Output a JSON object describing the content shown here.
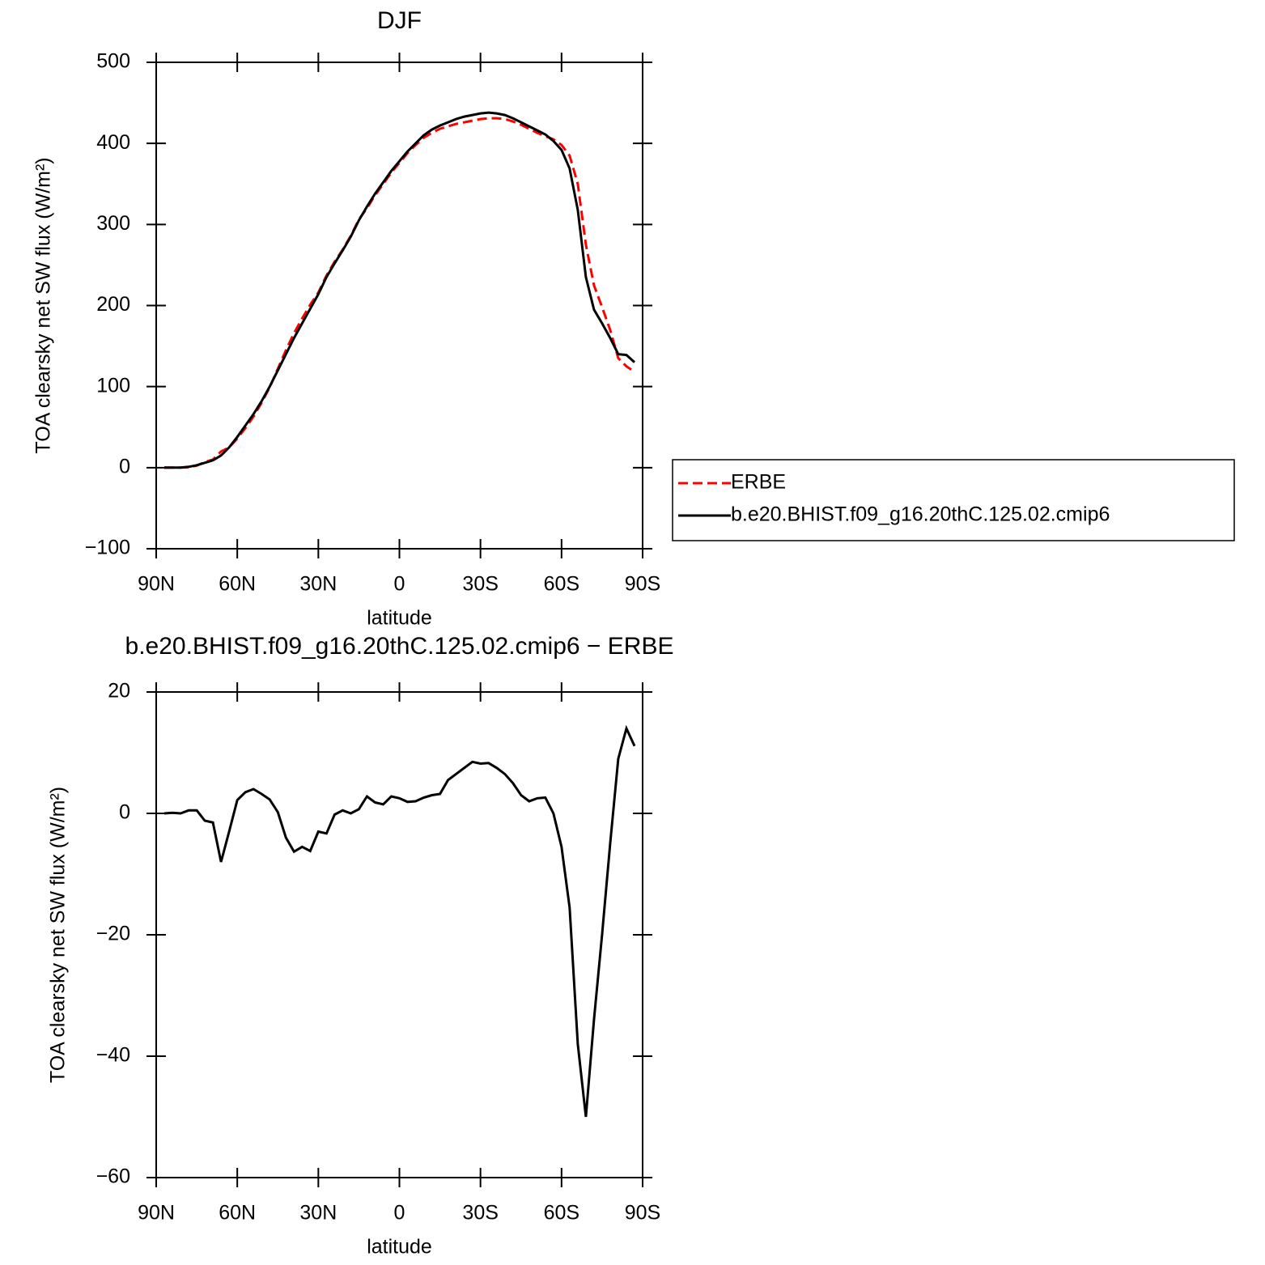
{
  "chart_data": [
    {
      "type": "line",
      "title": "DJF",
      "xlabel": "latitude",
      "ylabel": "TOA clearsky net SW flux (W/m²)",
      "x": [
        87,
        84,
        81,
        78,
        75,
        72,
        69,
        66,
        63,
        60,
        57,
        54,
        51,
        48,
        45,
        42,
        39,
        36,
        33,
        30,
        27,
        24,
        21,
        18,
        15,
        12,
        9,
        6,
        3,
        0,
        -3,
        -6,
        -9,
        -12,
        -15,
        -18,
        -21,
        -24,
        -27,
        -30,
        -33,
        -36,
        -39,
        -42,
        -45,
        -48,
        -51,
        -54,
        -57,
        -60,
        -63,
        -66,
        -69,
        -72,
        -75,
        -78,
        -81,
        -84,
        -87
      ],
      "series": [
        {
          "name": "ERBE",
          "color": "#ff0000",
          "dash": "dashed",
          "values": [
            0,
            0,
            0,
            0.5,
            2.5,
            7,
            10,
            20,
            25,
            36,
            49,
            63,
            80,
            99,
            122,
            145,
            166,
            184,
            201,
            216,
            237,
            254,
            269,
            286,
            306,
            320,
            336,
            350,
            364,
            376,
            388,
            398,
            407,
            413,
            418,
            421,
            424,
            426,
            428,
            430,
            431,
            431,
            430,
            427,
            423,
            418,
            413,
            409,
            405,
            398,
            385,
            350,
            275,
            225,
            198,
            170,
            135,
            125,
            118
          ]
        },
        {
          "name": "b.e20.BHIST.f09_g16.20thC.125.02.cmip6",
          "color": "#000000",
          "values": [
            0,
            0,
            0,
            1,
            3,
            6,
            9,
            15,
            25,
            38,
            52,
            66,
            82,
            100,
            120,
            140,
            160,
            178,
            196,
            214,
            235,
            252,
            268,
            285,
            305,
            322,
            338,
            352,
            366,
            378,
            390,
            400,
            410,
            417,
            422,
            426,
            430,
            433,
            435,
            437,
            438,
            437,
            435,
            431,
            426,
            421,
            416,
            411,
            403,
            392,
            369,
            318,
            235,
            195,
            178,
            160,
            140,
            139,
            130
          ]
        }
      ],
      "xlim": [
        90,
        -90
      ],
      "xticks": [
        {
          "value": 90,
          "label": "90N"
        },
        {
          "value": 60,
          "label": "60N"
        },
        {
          "value": 30,
          "label": "30N"
        },
        0,
        {
          "value": -30,
          "label": "30S"
        },
        {
          "value": -60,
          "label": "60S"
        },
        {
          "value": -90,
          "label": "90S"
        }
      ],
      "ylim": [
        -100,
        500
      ],
      "yticks": [
        {
          "value": -100,
          "label": "−100"
        },
        0,
        100,
        200,
        300,
        400,
        500
      ],
      "legend": "right"
    },
    {
      "type": "line",
      "title": "b.e20.BHIST.f09_g16.20thC.125.02.cmip6 − ERBE",
      "xlabel": "latitude",
      "ylabel": "TOA clearsky net SW flux (W/m²)",
      "x": [
        87,
        84,
        81,
        78,
        75,
        72,
        69,
        66,
        63,
        60,
        57,
        54,
        51,
        48,
        45,
        42,
        39,
        36,
        33,
        30,
        27,
        24,
        21,
        18,
        15,
        12,
        9,
        6,
        3,
        0,
        -3,
        -6,
        -9,
        -12,
        -15,
        -18,
        -21,
        -24,
        -27,
        -30,
        -33,
        -36,
        -39,
        -42,
        -45,
        -48,
        -51,
        -54,
        -57,
        -60,
        -63,
        -66,
        -69,
        -72,
        -75,
        -78,
        -81,
        -84,
        -87
      ],
      "color": "#000000",
      "values": [
        0,
        0.1,
        0,
        0.5,
        0.5,
        -1.2,
        -1.5,
        -8,
        -3,
        2.2,
        3.5,
        4,
        3.2,
        2.3,
        0.2,
        -4,
        -6.3,
        -5.5,
        -6.2,
        -3,
        -3.3,
        -0.2,
        0.5,
        0,
        0.7,
        2.8,
        1.8,
        1.5,
        2.8,
        2.5,
        1.9,
        2,
        2.6,
        3,
        3.2,
        5.5,
        6.5,
        7.5,
        8.5,
        8.2,
        8.3,
        7.5,
        6.5,
        5,
        3,
        2,
        2.5,
        2.6,
        0,
        -5.5,
        -15.5,
        -38,
        -50,
        -34,
        -20,
        -5,
        9,
        14,
        11.1
      ],
      "xlim": [
        90,
        -90
      ],
      "xticks": [
        {
          "value": 90,
          "label": "90N"
        },
        {
          "value": 60,
          "label": "60N"
        },
        {
          "value": 30,
          "label": "30N"
        },
        0,
        {
          "value": -30,
          "label": "30S"
        },
        {
          "value": -60,
          "label": "60S"
        },
        {
          "value": -90,
          "label": "90S"
        }
      ],
      "ylim": [
        -60,
        20
      ],
      "yticks": [
        {
          "value": -60,
          "label": "−60"
        },
        {
          "value": -40,
          "label": "−40"
        },
        {
          "value": -20,
          "label": "−20"
        },
        0,
        20
      ]
    }
  ]
}
